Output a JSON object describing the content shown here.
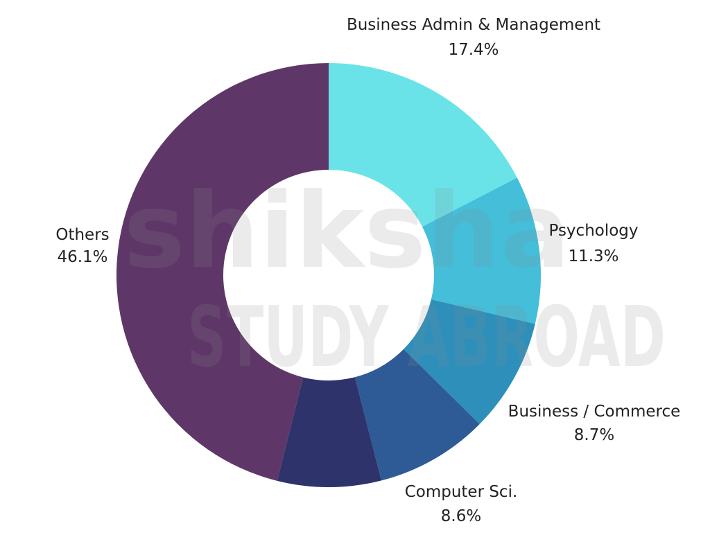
{
  "watermark": {
    "line1": "shiksha",
    "line2": "STUDY ABROAD"
  },
  "colors": {
    "background": "#ffffff",
    "watermark": "#8a8a8a",
    "label_text": "#222222"
  },
  "chart_data": {
    "type": "pie",
    "variant": "donut",
    "title": "",
    "unit": "%",
    "slices": [
      {
        "label": "Business Admin & Management",
        "value": 17.4,
        "value_label": "17.4%",
        "color": "#6ae3e8"
      },
      {
        "label": "Psychology",
        "value": 11.3,
        "value_label": "11.3%",
        "color": "#44bed9"
      },
      {
        "label": "Business / Commerce",
        "value": 8.7,
        "value_label": "8.7%",
        "color": "#2d8fba"
      },
      {
        "label": "Computer Sci.",
        "value": 8.6,
        "value_label": "8.6%",
        "color": "#2e5b96"
      },
      {
        "label": "",
        "value": 7.9,
        "value_label": "",
        "color": "#2e336b"
      },
      {
        "label": "Others",
        "value": 46.1,
        "value_label": "46.1%",
        "color": "#5e3768"
      }
    ]
  }
}
